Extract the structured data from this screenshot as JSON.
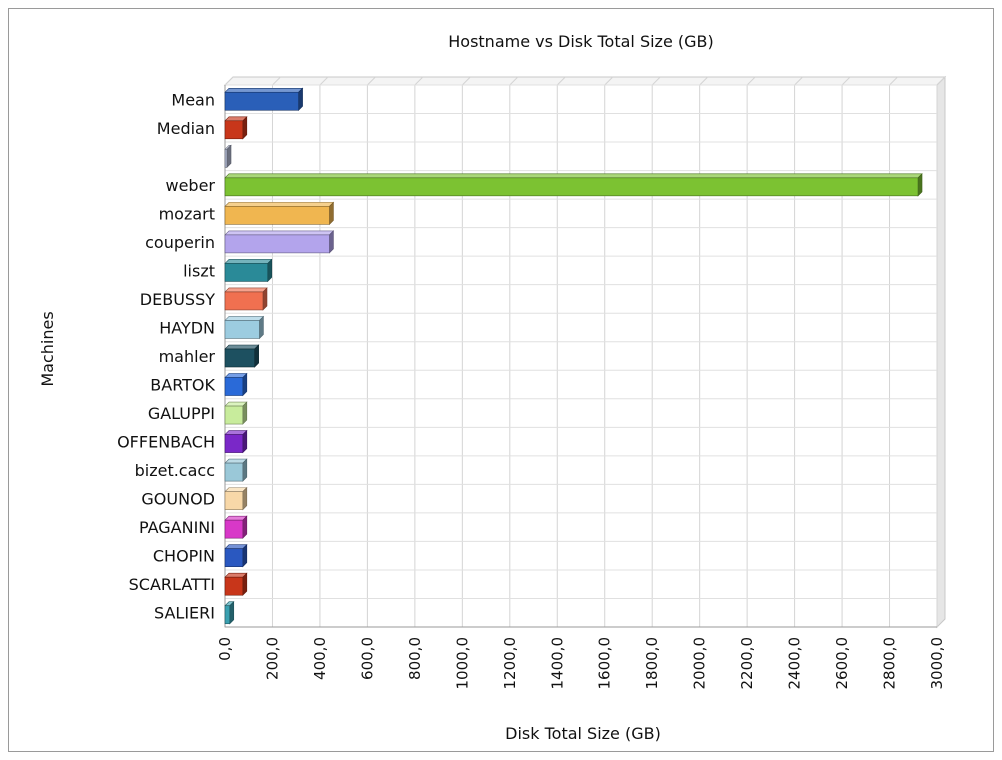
{
  "chart_data": {
    "type": "bar",
    "orientation": "horizontal",
    "title": "Hostname vs Disk Total Size (GB)",
    "xlabel": "Disk Total Size (GB)",
    "ylabel": "Machines",
    "xlim": [
      0,
      3000
    ],
    "grid": true,
    "style": "3d",
    "x_ticks": [
      "0,0",
      "200,0",
      "400,0",
      "600,0",
      "800,0",
      "1000,0",
      "1200,0",
      "1400,0",
      "1600,0",
      "1800,0",
      "2000,0",
      "2200,0",
      "2400,0",
      "2600,0",
      "2800,0",
      "3000,0"
    ],
    "categories": [
      "Mean",
      "Median",
      "",
      "weber",
      "mozart",
      "couperin",
      "liszt",
      "DEBUSSY",
      "HAYDN",
      "mahler",
      "BARTOK",
      "GALUPPI",
      "OFFENBACH",
      "bizet.cacc",
      "GOUNOD",
      "PAGANINI",
      "CHOPIN",
      "SCARLATTI",
      "SALIERI"
    ],
    "values": [
      310,
      75,
      5,
      2920,
      440,
      440,
      180,
      160,
      145,
      125,
      75,
      75,
      75,
      75,
      75,
      75,
      75,
      75,
      20
    ],
    "colors": [
      "#2a5fb8",
      "#c8361a",
      "#b0b8d0",
      "#7cc232",
      "#f0b650",
      "#b3a4ec",
      "#2a8a98",
      "#f07050",
      "#9ccce0",
      "#1d5060",
      "#2a6ad8",
      "#c8ec9c",
      "#7a28c8",
      "#9ac8d8",
      "#f8d8a8",
      "#d838c8",
      "#2a58c0",
      "#c8361a",
      "#3aa0b0"
    ]
  }
}
